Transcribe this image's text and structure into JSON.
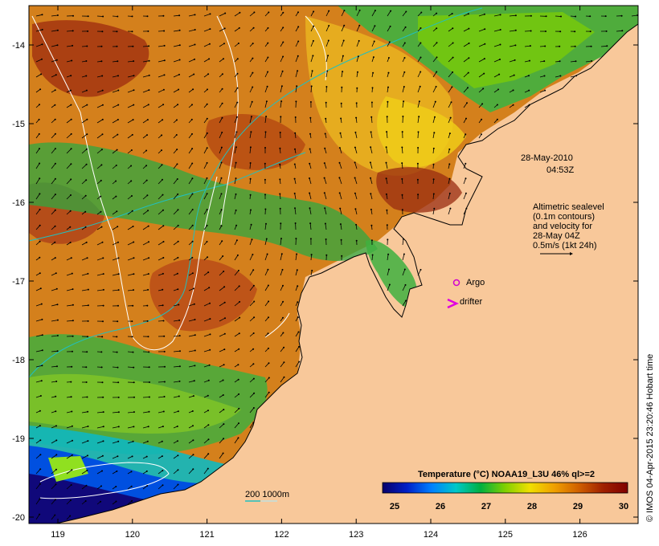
{
  "map": {
    "date_line": "28-May-2010",
    "time_line": "04:53Z",
    "legend_lines": [
      "Altimetric sealevel",
      "(0.1m contours)",
      "and velocity for",
      "28-May 04Z",
      "0.5m/s (1kt 24h)"
    ],
    "argo_label": "Argo",
    "drifter_label": "drifter",
    "isobath_label": "200  1000m",
    "credit": "© IMOS 04-Apr-2015 23:20:46 Hobart time"
  },
  "colorbar": {
    "title": "Temperature (°C) NOAA19_L3U 46% ql>=2",
    "ticks": [
      "25",
      "26",
      "27",
      "28",
      "29",
      "30"
    ],
    "colors": [
      "#08006a",
      "#0020c8",
      "#0080ff",
      "#00c8c8",
      "#00b040",
      "#80d000",
      "#f0e000",
      "#f0a000",
      "#d06000",
      "#a02000",
      "#800000"
    ]
  },
  "axes": {
    "x_ticks": [
      "119",
      "120",
      "121",
      "122",
      "123",
      "124",
      "125",
      "126"
    ],
    "y_ticks": [
      "-14",
      "-15",
      "-16",
      "-17",
      "-18",
      "-19",
      "-20"
    ]
  },
  "colors": {
    "land": "#f8c89a",
    "argo": "#d000d0",
    "drifter": "#e000e0",
    "isobath_200": "#20c0c0",
    "isobath_1000": "#c0e0e0"
  }
}
